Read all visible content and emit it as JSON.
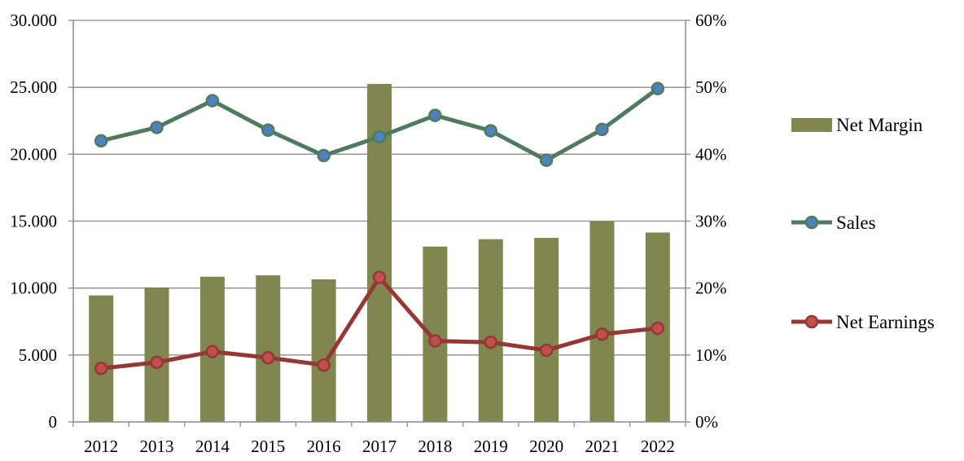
{
  "chart_data": {
    "type": "bar",
    "categories": [
      "2012",
      "2013",
      "2014",
      "2015",
      "2016",
      "2017",
      "2018",
      "2019",
      "2020",
      "2021",
      "2022"
    ],
    "series": [
      {
        "name": "Net Margin",
        "kind": "bar",
        "axis": "right",
        "unit": "%",
        "values": [
          18.9,
          20.1,
          21.7,
          21.9,
          21.3,
          50.5,
          26.2,
          27.3,
          27.5,
          30.0,
          28.3
        ],
        "color": "#80864f"
      },
      {
        "name": "Sales",
        "kind": "line",
        "axis": "left",
        "values": [
          21000,
          22000,
          24000,
          21800,
          19900,
          21300,
          22900,
          21750,
          19550,
          21850,
          24900
        ],
        "color": "#4f7a5e",
        "marker_fill": "#4f81bd"
      },
      {
        "name": "Net Earnings",
        "kind": "line",
        "axis": "left",
        "values": [
          4000,
          4450,
          5250,
          4800,
          4250,
          10800,
          6050,
          5950,
          5350,
          6550,
          7000
        ],
        "color": "#953735",
        "marker_fill": "#c0504d"
      }
    ],
    "left_axis": {
      "min": 0,
      "max": 30000,
      "ticks": [
        0,
        5000,
        10000,
        15000,
        20000,
        25000,
        30000
      ],
      "tick_labels": [
        "0",
        "5.000",
        "10.000",
        "15.000",
        "20.000",
        "25.000",
        "30.000"
      ]
    },
    "right_axis": {
      "min": 0,
      "max": 60,
      "ticks": [
        0,
        10,
        20,
        30,
        40,
        50,
        60
      ],
      "tick_labels": [
        "0%",
        "10%",
        "20%",
        "30%",
        "40%",
        "50%",
        "60%"
      ]
    },
    "grid": true,
    "legend": {
      "position": "right",
      "entries": [
        "Net Margin",
        "Sales",
        "Net Earnings"
      ]
    },
    "title": "",
    "xlabel": "",
    "ylabel": ""
  }
}
